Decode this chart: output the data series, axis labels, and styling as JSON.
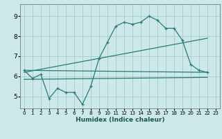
{
  "xlabel": "Humidex (Indice chaleur)",
  "bg_color": "#cce8e8",
  "grid_color": "#aacece",
  "line_color": "#2a7a7a",
  "xlim": [
    -0.5,
    23.5
  ],
  "ylim": [
    4.4,
    9.6
  ],
  "xticks": [
    0,
    1,
    2,
    3,
    4,
    5,
    6,
    7,
    8,
    9,
    10,
    11,
    12,
    13,
    14,
    15,
    16,
    17,
    18,
    19,
    20,
    21,
    22,
    23
  ],
  "yticks": [
    5,
    6,
    7,
    8,
    9
  ],
  "line1_x": [
    0,
    1,
    2,
    3,
    4,
    5,
    6,
    7,
    8,
    9,
    10,
    11,
    12,
    13,
    14,
    15,
    16,
    17,
    18,
    19,
    20,
    21,
    22
  ],
  "line1_y": [
    6.3,
    5.9,
    6.1,
    4.9,
    5.4,
    5.2,
    5.2,
    4.6,
    5.5,
    6.9,
    7.7,
    8.5,
    8.7,
    8.6,
    8.7,
    9.0,
    8.8,
    8.4,
    8.4,
    7.8,
    6.6,
    6.3,
    6.2
  ],
  "trend1_x": [
    0,
    22
  ],
  "trend1_y": [
    6.3,
    6.2
  ],
  "trend2_x": [
    0,
    22
  ],
  "trend2_y": [
    6.2,
    7.9
  ],
  "trend3_x": [
    0,
    22
  ],
  "trend3_y": [
    5.85,
    5.95
  ]
}
